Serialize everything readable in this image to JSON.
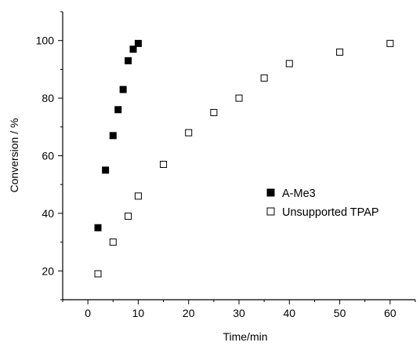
{
  "chart_data": {
    "type": "scatter",
    "xlabel": "Time/min",
    "ylabel": "Conversion / %",
    "xlim": [
      -5,
      65
    ],
    "ylim": [
      10,
      110
    ],
    "xticks": [
      0,
      10,
      20,
      30,
      40,
      50,
      60
    ],
    "yticks": [
      20,
      40,
      60,
      80,
      100
    ],
    "grid": false,
    "legend_position": "center-right",
    "series": [
      {
        "name": "A-Me3",
        "marker": "filled-square",
        "color": "#000000",
        "x": [
          2,
          3.5,
          5,
          6,
          7,
          8,
          9,
          10
        ],
        "y": [
          35,
          55,
          67,
          76,
          83,
          93,
          97,
          99
        ]
      },
      {
        "name": "Unsupported TPAP",
        "marker": "open-square",
        "color": "#000000",
        "x": [
          2,
          5,
          8,
          10,
          15,
          20,
          25,
          30,
          35,
          40,
          50,
          60
        ],
        "y": [
          19,
          30,
          39,
          46,
          57,
          68,
          75,
          80,
          87,
          92,
          96,
          99
        ]
      }
    ]
  }
}
